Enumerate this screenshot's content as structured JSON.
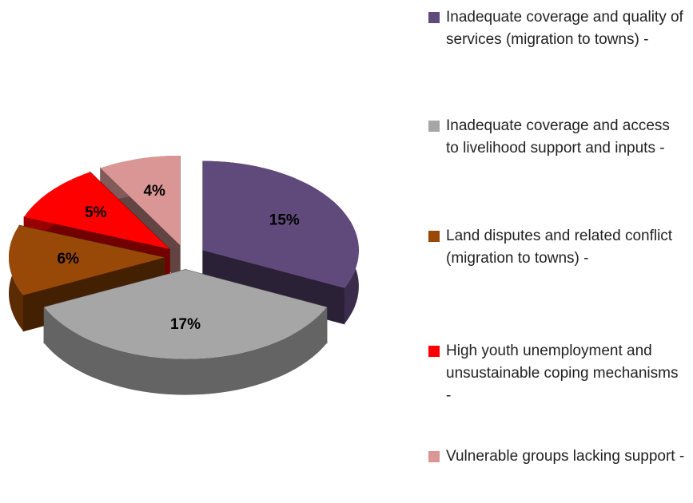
{
  "chart_data": {
    "type": "pie",
    "categories": [
      "Inadequate coverage and quality of services (migration to towns) -",
      "Inadequate coverage and access to livelihood support and inputs -",
      "Land disputes and related conflict (migration to towns) -",
      "High youth unemployment and unsustainable coping mechanisms -",
      "Vulnerable groups lacking support -"
    ],
    "values": [
      15,
      17,
      6,
      5,
      4
    ],
    "value_labels": [
      "15%",
      "17%",
      "6%",
      "5%",
      "4%"
    ],
    "colors": [
      "#604a7b",
      "#a6a6a6",
      "#984807",
      "#ff0000",
      "#d99694"
    ],
    "legend": "right"
  }
}
